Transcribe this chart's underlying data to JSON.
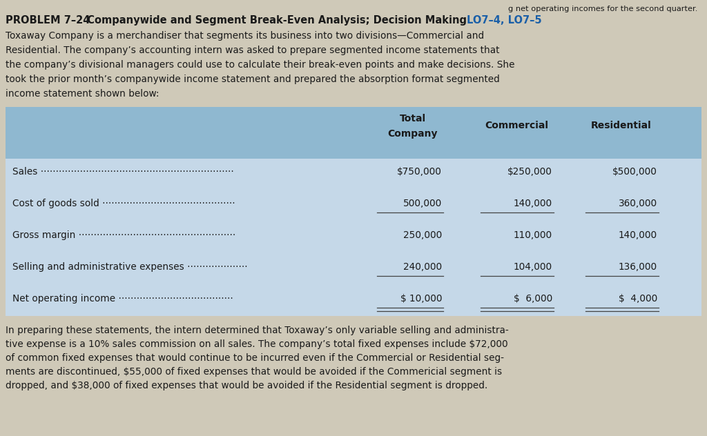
{
  "top_right_text": "g net operating incomes for the second quarter.",
  "problem_bold": "PROBLEM 7–24",
  "problem_title": "  Companywide and Segment Break-Even Analysis; Decision Making ",
  "problem_lo_bold": "LO7–4, LO7–5",
  "intro_lines": [
    "Toxaway Company is a merchandiser that segments its business into two divisions—Commercial and",
    "Residential. The company’s accounting intern was asked to prepare segmented income statements that",
    "the company’s divisional managers could use to calculate their break-even points and make decisions. She",
    "took the prior month’s companywide income statement and prepared the absorption format segmented",
    "income statement shown below:"
  ],
  "col_headers": [
    "Total\nCompany",
    "Commercial",
    "Residential"
  ],
  "row_labels": [
    "Sales ································································",
    "Cost of goods sold ············································",
    "Gross margin ····················································",
    "Selling and administrative expenses ····················",
    "Net operating income ······································"
  ],
  "col1_vals": [
    "$750,000",
    "500,000",
    "250,000",
    "240,000",
    "$ 10,000"
  ],
  "col2_vals": [
    "$250,000",
    "140,000",
    "110,000",
    "104,000",
    "$  6,000"
  ],
  "col3_vals": [
    "$500,000",
    "360,000",
    "140,000",
    "136,000",
    "$  4,000"
  ],
  "bottom_lines": [
    "In preparing these statements, the intern determined that Toxaway’s only variable selling and administra-",
    "tive expense is a 10% sales commission on all sales. The company’s total fixed expenses include $72,000",
    "of common fixed expenses that would continue to be incurred even if the Commercial or Residential seg-",
    "ments are discontinued, $55,000 of fixed expenses that would be avoided if the Commericial segment is",
    "dropped, and $38,000 of fixed expenses that would be avoided if the Residential segment is dropped."
  ],
  "page_bg": "#cfc9b8",
  "table_bg": "#c5d8e8",
  "header_bg": "#8fb8d0",
  "text_color": "#1a1a1a",
  "blue_lo_color": "#1a5fa8",
  "fs_body": 9.8,
  "fs_problem": 10.5
}
